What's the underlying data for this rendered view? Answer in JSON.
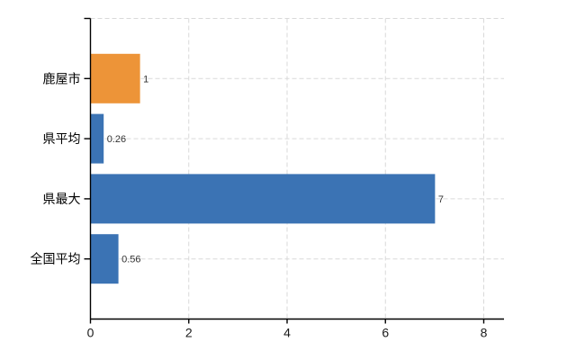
{
  "chart_data": {
    "type": "bar",
    "orientation": "horizontal",
    "title": "",
    "xlabel": "",
    "ylabel": "",
    "categories": [
      "鹿屋市",
      "県平均",
      "県最大",
      "全国平均"
    ],
    "values": [
      1,
      0.26,
      7,
      0.56
    ],
    "value_labels": [
      "1",
      "0.26",
      "7",
      "0.56"
    ],
    "series": [
      {
        "name": "value",
        "values": [
          1,
          0.26,
          7,
          0.56
        ]
      }
    ],
    "bar_colors": [
      "#ED9438",
      "#3B73B4",
      "#3B73B4",
      "#3B73B4"
    ],
    "xlim": [
      0,
      8.45
    ],
    "x_ticks": [
      0,
      2,
      4,
      6,
      8
    ],
    "x_tick_labels": [
      "0",
      "2",
      "4",
      "6",
      "8"
    ],
    "grid": true,
    "legend": false,
    "colors": {
      "highlight_bar": "#ED9438",
      "default_bar": "#3B73B4",
      "gridline": "#d9d9d9",
      "axis": "#000000",
      "category_text": "#000000",
      "tick_text": "#1a1a1a",
      "value_text": "#333333",
      "background": "#ffffff"
    }
  }
}
